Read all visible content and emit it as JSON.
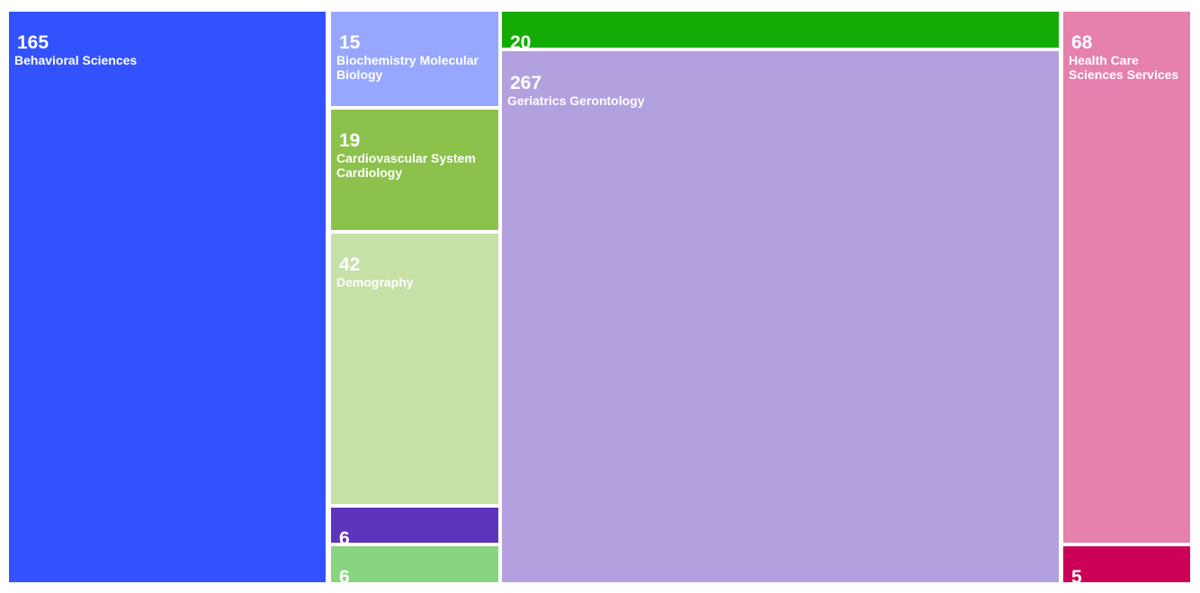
{
  "chart_data": {
    "type": "treemap",
    "title": "",
    "items": [
      {
        "name": "Behavioral Sciences",
        "value": 165,
        "color": "#3352ff"
      },
      {
        "name": "Biochemistry Molecular Biology",
        "value": 15,
        "color": "#97a7ff"
      },
      {
        "name": "Cardiovascular System Cardiology",
        "value": 19,
        "color": "#8cc24c"
      },
      {
        "name": "Demography",
        "value": 42,
        "color": "#c5e1a7"
      },
      {
        "name": "",
        "value": 6,
        "color": "#5f34bd"
      },
      {
        "name": "",
        "value": 6,
        "color": "#89d480"
      },
      {
        "name": "",
        "value": 20,
        "color": "#14ac04"
      },
      {
        "name": "Geriatrics Gerontology",
        "value": 267,
        "color": "#b3a0df"
      },
      {
        "name": "Health Care Sciences Services",
        "value": 68,
        "color": "#e680ad"
      },
      {
        "name": "",
        "value": 5,
        "color": "#cc0057"
      }
    ]
  }
}
